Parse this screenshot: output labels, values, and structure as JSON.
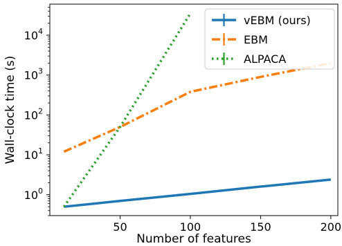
{
  "chart_data": {
    "type": "line",
    "xlabel": "Number of features",
    "ylabel": "Wall-clock time (s)",
    "xlim": [
      0,
      205
    ],
    "ylim": [
      0.3,
      60000
    ],
    "yscale": "log",
    "x_ticks": [
      50,
      100,
      150,
      200
    ],
    "y_ticks": [
      {
        "base": "10",
        "exp": "0",
        "value": 1
      },
      {
        "base": "10",
        "exp": "1",
        "value": 10
      },
      {
        "base": "10",
        "exp": "2",
        "value": 100
      },
      {
        "base": "10",
        "exp": "3",
        "value": 1000
      },
      {
        "base": "10",
        "exp": "4",
        "value": 10000
      }
    ],
    "grid": false,
    "legend_position": "top-right",
    "series": [
      {
        "name": "vEBM (ours)",
        "color": "#1f77b4",
        "style": "solid",
        "x": [
          10,
          50,
          100,
          150,
          200
        ],
        "y": [
          0.5,
          0.7,
          1.05,
          1.6,
          2.4
        ]
      },
      {
        "name": "EBM",
        "color": "#ff7f0e",
        "style": "dashdot",
        "x": [
          10,
          50,
          100,
          150,
          200
        ],
        "y": [
          12,
          50,
          380,
          900,
          2000
        ]
      },
      {
        "name": "ALPACA",
        "color": "#2ca02c",
        "style": "dotted",
        "x": [
          10,
          50,
          100
        ],
        "y": [
          0.5,
          50,
          35000
        ]
      }
    ]
  }
}
